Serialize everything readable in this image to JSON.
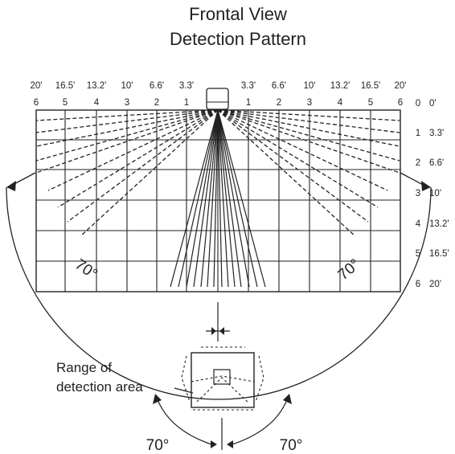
{
  "title": {
    "line1": "Frontal View",
    "line2": "Detection Pattern"
  },
  "top_feet": [
    "20'",
    "16.5'",
    "13.2'",
    "10'",
    "6.6'",
    "3.3'",
    "3.3'",
    "6.6'",
    "10'",
    "13.2'",
    "16.5'",
    "20'"
  ],
  "top_m": [
    "6",
    "5",
    "4",
    "3",
    "2",
    "1",
    "1",
    "2",
    "3",
    "4",
    "5",
    "6"
  ],
  "right_m": [
    "0",
    "1",
    "2",
    "3",
    "4",
    "5",
    "6"
  ],
  "right_feet": [
    "0'",
    "3.3'",
    "6.6'",
    "10'",
    "13.2'",
    "16.5'",
    "20'"
  ],
  "angle_left": "70°",
  "angle_right": "70°",
  "bottom_label": {
    "line1": "Range of",
    "line2": "detection area"
  },
  "bottom_angle_left": "70°",
  "bottom_angle_right": "70°",
  "colors": {
    "ink": "#222222"
  }
}
